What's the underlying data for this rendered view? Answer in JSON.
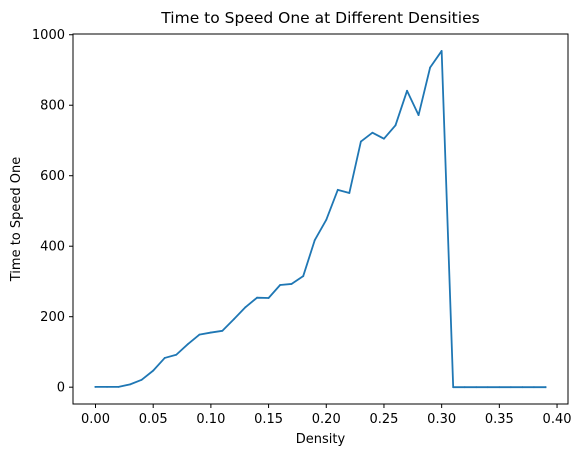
{
  "chart_data": {
    "type": "line",
    "title": "Time to Speed One at Different Densities",
    "xlabel": "Density",
    "ylabel": "Time to Speed One",
    "xlim": [
      -0.0195,
      0.4095
    ],
    "ylim": [
      -47.7,
      1002.1
    ],
    "xticks": [
      0.0,
      0.05,
      0.1,
      0.15,
      0.2,
      0.25,
      0.3,
      0.35,
      0.4
    ],
    "xtick_labels": [
      "0.00",
      "0.05",
      "0.10",
      "0.15",
      "0.20",
      "0.25",
      "0.30",
      "0.35",
      "0.40"
    ],
    "yticks": [
      0,
      200,
      400,
      600,
      800,
      1000
    ],
    "ytick_labels": [
      "0",
      "200",
      "400",
      "600",
      "800",
      "1000"
    ],
    "grid": false,
    "legend": "none",
    "series": [
      {
        "color": "#1f77b4",
        "x": [
          0.0,
          0.01,
          0.02,
          0.03,
          0.04,
          0.05,
          0.06,
          0.07,
          0.08,
          0.09,
          0.1,
          0.11,
          0.12,
          0.13,
          0.14,
          0.15,
          0.16,
          0.17,
          0.18,
          0.19,
          0.2,
          0.21,
          0.22,
          0.23,
          0.24,
          0.25,
          0.26,
          0.27,
          0.28,
          0.29,
          0.3,
          0.31,
          0.32,
          0.33,
          0.34,
          0.35,
          0.36,
          0.37,
          0.38,
          0.39
        ],
        "y": [
          1,
          1,
          1,
          8,
          21,
          47,
          83,
          92,
          122,
          149,
          155,
          160,
          193,
          227,
          254,
          253,
          290,
          293,
          315,
          417,
          475,
          560,
          551,
          697,
          722,
          705,
          743,
          841,
          772,
          907,
          954,
          0,
          0,
          0,
          0,
          0,
          0,
          0,
          0,
          0
        ]
      }
    ]
  }
}
